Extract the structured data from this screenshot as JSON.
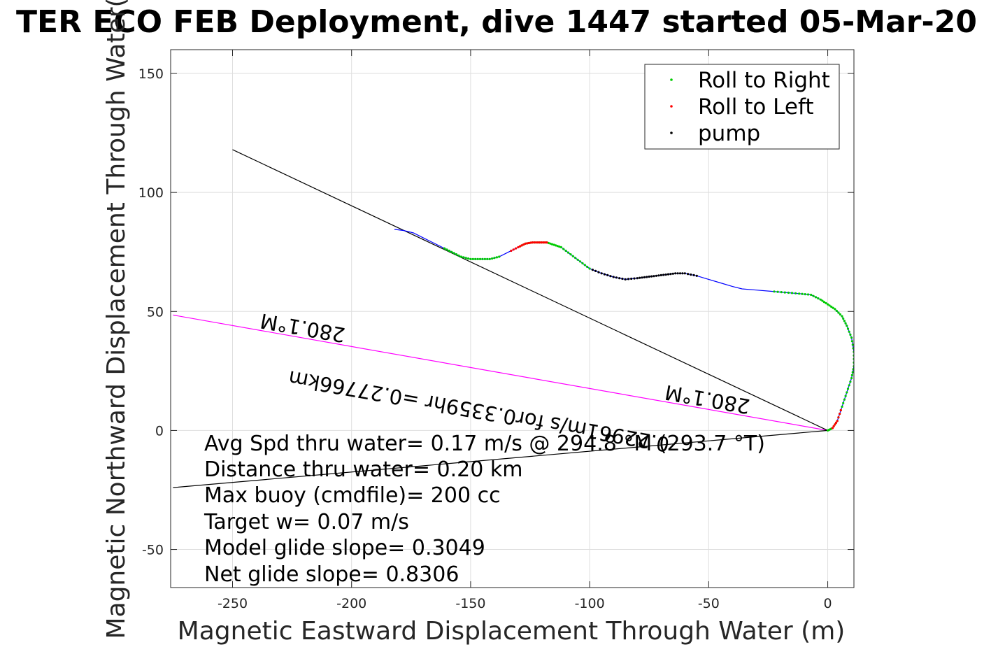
{
  "chart_data": {
    "type": "line",
    "title": "TER ECO FEB Deployment, dive 1447 started 05-Mar-20",
    "xlabel": "Magnetic Eastward Displacement Through Water (m)",
    "ylabel": "Magnetic Northward Displacement Through Water(",
    "xlim": [
      -276,
      11
    ],
    "ylim": [
      -66,
      160
    ],
    "xticks": [
      -250,
      -200,
      -150,
      -100,
      -50,
      0
    ],
    "yticks": [
      -50,
      0,
      50,
      100,
      150
    ],
    "xtick_labels": [
      "-250",
      "-200",
      "-150",
      "-100",
      "-50",
      "0"
    ],
    "ytick_labels": [
      "-50",
      "0",
      "50",
      "100",
      "150"
    ],
    "grid": true,
    "legend": {
      "location": "top-right",
      "entries": [
        {
          "label": "Roll to Right",
          "color": "#00cc00"
        },
        {
          "label": "Roll to Left",
          "color": "#ff0000"
        },
        {
          "label": "pump",
          "color": "#000000"
        }
      ]
    },
    "track": {
      "name": "glider track",
      "color": "#0000ff",
      "x": [
        0,
        2,
        4,
        6,
        8,
        10,
        11,
        11,
        10,
        8,
        6,
        3,
        0,
        -3,
        -7,
        -12,
        -18,
        -24,
        -30,
        -36,
        -40,
        -45,
        -50,
        -55,
        -60,
        -64,
        -68,
        -72,
        -76,
        -80,
        -85,
        -90,
        -95,
        -100,
        -104,
        -108,
        -112,
        -115,
        -118,
        -121,
        -124,
        -127,
        -130,
        -134,
        -138,
        -142,
        -146,
        -150,
        -154,
        -158,
        -162,
        -166,
        -170,
        -174,
        -178,
        -182
      ],
      "y": [
        0,
        1,
        4,
        10,
        16,
        22,
        27,
        33,
        39,
        44,
        48,
        51,
        53,
        55,
        57,
        57.5,
        58,
        58.5,
        59,
        59.5,
        60.5,
        62,
        63.5,
        65,
        66,
        66,
        65.5,
        65,
        64.5,
        64,
        63.5,
        64.5,
        66,
        68,
        71,
        74,
        77,
        78,
        79,
        79,
        79,
        78.5,
        77,
        75,
        73,
        72,
        72,
        72,
        73,
        75,
        77,
        79,
        81,
        83,
        84,
        84.5
      ]
    },
    "roll_right_segments": [
      [
        0,
        17
      ],
      [
        33,
        42
      ],
      [
        44,
        50
      ]
    ],
    "roll_left_segments": [
      [
        1,
        3
      ],
      [
        38,
        43
      ]
    ],
    "pump_segments": [
      [
        23,
        33
      ]
    ],
    "reference_lines": [
      {
        "name": "heading-line",
        "color": "#ff00ff",
        "x": [
          0,
          -275
        ],
        "y": [
          0,
          48.5
        ]
      },
      {
        "name": "dac-line",
        "color": "#000000",
        "x": [
          0,
          -275
        ],
        "y": [
          0,
          -24
        ]
      },
      {
        "name": "trend-line",
        "color": "#000000",
        "x": [
          0,
          -250
        ],
        "y": [
          0,
          118
        ]
      }
    ],
    "line_labels": [
      {
        "name": "heading-label-left",
        "text": "280.1°M",
        "x": -220,
        "y": 46,
        "rotate": 190
      },
      {
        "name": "heading-label-right",
        "text": "280.1°M",
        "x": -50,
        "y": 16,
        "rotate": 190
      },
      {
        "name": "distance-label",
        "text": "0.22961m/s for0.3359hr =0.27766km",
        "x": -146,
        "y": 11,
        "rotate": 190
      }
    ],
    "annotations": [
      "Avg Spd thru water=  0.17 m/s @ 294.8 °M (293.7 °T)",
      "Distance thru water=  0.20 km",
      "Max buoy (cmdfile)= 200 cc",
      "Target w= 0.07 m/s",
      "Model glide slope= 0.3049",
      "Net glide slope= 0.8306"
    ]
  }
}
